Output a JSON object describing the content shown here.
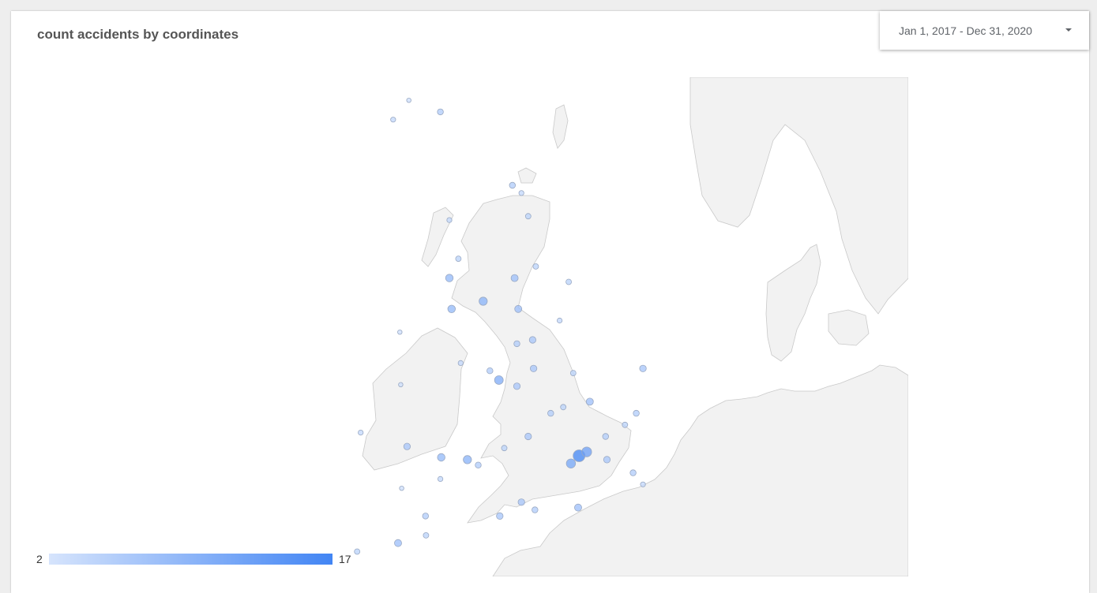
{
  "chart": {
    "title": "count accidents by coordinates"
  },
  "date_range": {
    "label": "Jan 1, 2017 - Dec 31, 2020"
  },
  "legend": {
    "min_label": "2",
    "max_label": "17",
    "color_min": "#d6e4fc",
    "color_max": "#4285f4"
  },
  "map": {
    "land_color": "#f2f2f2",
    "border_color": "#c9c9c9",
    "bubble_stroke": "#9aa9c3",
    "regions": [
      "great-britain",
      "ireland",
      "scandinavia",
      "continental-europe"
    ]
  },
  "chart_data": {
    "type": "bubble-map",
    "title": "count accidents by coordinates",
    "metric": "count accidents",
    "color_range": [
      2,
      17
    ],
    "points": [
      {
        "lat": 58.53,
        "lon": -3.45,
        "count": 3
      },
      {
        "lat": 58.2,
        "lon": -4.2,
        "count": 4
      },
      {
        "lat": 57.9,
        "lon": -4.3,
        "count": 3
      },
      {
        "lat": 57.15,
        "lon": -2.1,
        "count": 3
      },
      {
        "lat": 57.45,
        "lon": -4.25,
        "count": 2
      },
      {
        "lat": 56.9,
        "lon": -2.3,
        "count": 2
      },
      {
        "lat": 55.95,
        "lon": -3.2,
        "count": 6
      },
      {
        "lat": 55.85,
        "lon": -4.25,
        "count": 4
      },
      {
        "lat": 56.1,
        "lon": -3.9,
        "count": 3
      },
      {
        "lat": 55.0,
        "lon": -1.6,
        "count": 6
      },
      {
        "lat": 54.9,
        "lon": -1.4,
        "count": 4
      },
      {
        "lat": 54.6,
        "lon": -1.25,
        "count": 5
      },
      {
        "lat": 54.55,
        "lon": -3.0,
        "count": 4
      },
      {
        "lat": 54.05,
        "lon": -2.8,
        "count": 5
      },
      {
        "lat": 53.8,
        "lon": -3.0,
        "count": 9
      },
      {
        "lat": 53.8,
        "lon": -1.55,
        "count": 8
      },
      {
        "lat": 53.95,
        "lon": -1.08,
        "count": 5
      },
      {
        "lat": 53.75,
        "lon": -0.35,
        "count": 5
      },
      {
        "lat": 53.5,
        "lon": -2.25,
        "count": 10
      },
      {
        "lat": 53.4,
        "lon": -2.95,
        "count": 9
      },
      {
        "lat": 53.4,
        "lon": -1.47,
        "count": 8
      },
      {
        "lat": 53.0,
        "lon": -1.15,
        "count": 7
      },
      {
        "lat": 52.95,
        "lon": -1.5,
        "count": 6
      },
      {
        "lat": 53.25,
        "lon": -0.55,
        "count": 4
      },
      {
        "lat": 52.63,
        "lon": -1.13,
        "count": 7
      },
      {
        "lat": 52.48,
        "lon": -1.9,
        "count": 11
      },
      {
        "lat": 52.4,
        "lon": -1.5,
        "count": 7
      },
      {
        "lat": 52.6,
        "lon": -2.1,
        "count": 6
      },
      {
        "lat": 52.7,
        "lon": -2.75,
        "count": 4
      },
      {
        "lat": 52.2,
        "lon": 0.12,
        "count": 8
      },
      {
        "lat": 52.63,
        "lon": 1.3,
        "count": 7
      },
      {
        "lat": 52.05,
        "lon": 1.15,
        "count": 6
      },
      {
        "lat": 52.57,
        "lon": -0.25,
        "count": 5
      },
      {
        "lat": 52.13,
        "lon": -0.47,
        "count": 5
      },
      {
        "lat": 52.05,
        "lon": -0.75,
        "count": 6
      },
      {
        "lat": 51.75,
        "lon": -1.25,
        "count": 7
      },
      {
        "lat": 51.9,
        "lon": 0.9,
        "count": 5
      },
      {
        "lat": 51.75,
        "lon": 0.47,
        "count": 6
      },
      {
        "lat": 51.5,
        "lon": -0.12,
        "count": 17
      },
      {
        "lat": 51.4,
        "lon": -0.3,
        "count": 12
      },
      {
        "lat": 51.55,
        "lon": 0.05,
        "count": 13
      },
      {
        "lat": 51.45,
        "lon": 0.5,
        "count": 7
      },
      {
        "lat": 51.28,
        "lon": 1.08,
        "count": 6
      },
      {
        "lat": 51.13,
        "lon": 1.3,
        "count": 4
      },
      {
        "lat": 50.83,
        "lon": -0.14,
        "count": 8
      },
      {
        "lat": 50.9,
        "lon": -1.4,
        "count": 7
      },
      {
        "lat": 50.8,
        "lon": -1.1,
        "count": 6
      },
      {
        "lat": 50.72,
        "lon": -1.88,
        "count": 7
      },
      {
        "lat": 51.45,
        "lon": -2.6,
        "count": 10
      },
      {
        "lat": 51.38,
        "lon": -2.36,
        "count": 6
      },
      {
        "lat": 51.48,
        "lon": -3.18,
        "count": 9
      },
      {
        "lat": 51.62,
        "lon": -3.94,
        "count": 7
      },
      {
        "lat": 51.8,
        "lon": -4.97,
        "count": 4
      },
      {
        "lat": 52.42,
        "lon": -4.08,
        "count": 3
      },
      {
        "lat": 53.1,
        "lon": -4.1,
        "count": 3
      },
      {
        "lat": 51.6,
        "lon": -1.78,
        "count": 5
      },
      {
        "lat": 51.2,
        "lon": -3.2,
        "count": 4
      },
      {
        "lat": 50.72,
        "lon": -3.53,
        "count": 6
      },
      {
        "lat": 50.37,
        "lon": -4.14,
        "count": 8
      },
      {
        "lat": 50.47,
        "lon": -3.52,
        "count": 5
      },
      {
        "lat": 50.26,
        "lon": -5.05,
        "count": 5
      },
      {
        "lat": 50.12,
        "lon": -5.53,
        "count": 4
      },
      {
        "lat": 51.08,
        "lon": -4.06,
        "count": 3
      }
    ]
  }
}
